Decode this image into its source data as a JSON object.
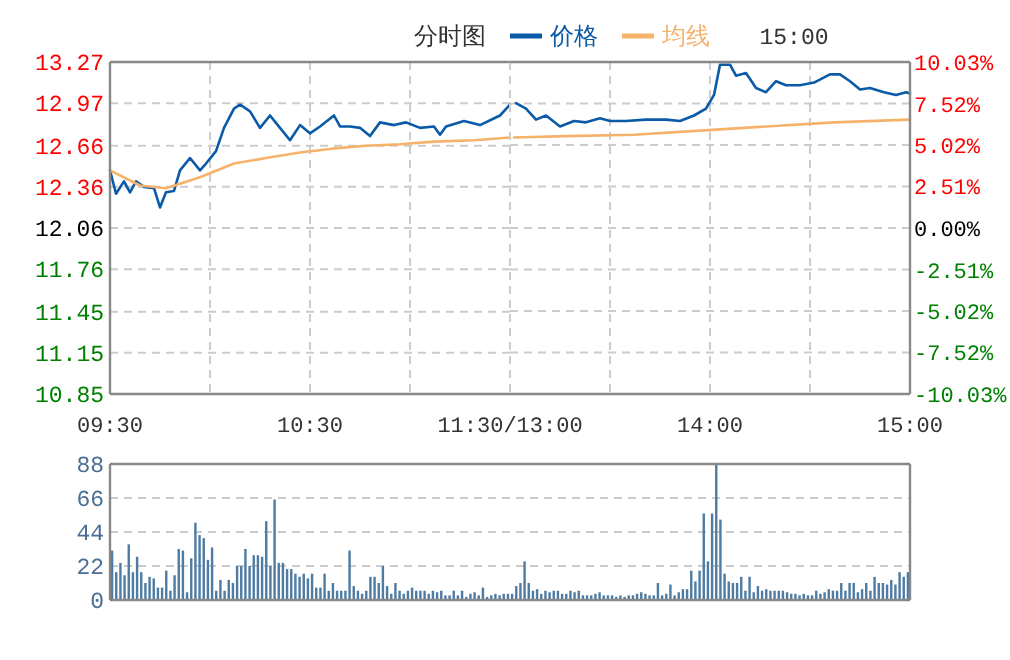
{
  "chart_data": [
    {
      "type": "line",
      "title": "分时图",
      "legend": "top",
      "grid": true,
      "xlim": [
        9.5,
        11.5
      ],
      "xticks": [
        {
          "value": 9.5,
          "label": "09:30"
        },
        {
          "value": 10,
          "label": null
        },
        {
          "value": 10.5,
          "label": "10:30"
        },
        {
          "value": 11,
          "label": null
        },
        {
          "value": 11.5,
          "label": "11:30/13:00"
        }
      ],
      "ylim": [
        10.85,
        13.27
      ],
      "yticks": [
        10.85,
        11.15,
        11.45,
        11.76,
        12.06,
        12.36,
        12.66,
        12.97,
        13.27
      ],
      "series": [
        {
          "name": "价格",
          "color": "#0a5aa8",
          "x": [
            9.5,
            9.53,
            9.57,
            9.6,
            9.63,
            9.67,
            9.72,
            9.75,
            9.78,
            9.82,
            9.85,
            9.9,
            9.95,
            9.98,
            10.03,
            10.07,
            10.12,
            10.15,
            10.2,
            10.25,
            10.3,
            10.35,
            10.4,
            10.45,
            10.5,
            10.55,
            10.62,
            10.65,
            10.7,
            10.75,
            10.8,
            10.85,
            10.92,
            10.98,
            11.05,
            11.12,
            11.15,
            11.18,
            11.27,
            11.35,
            11.45,
            11.5
          ],
          "values": [
            12.48,
            12.31,
            12.4,
            12.32,
            12.4,
            12.36,
            12.35,
            12.21,
            12.32,
            12.33,
            12.48,
            12.57,
            12.48,
            12.53,
            12.62,
            12.79,
            12.93,
            12.96,
            12.91,
            12.79,
            12.88,
            12.79,
            12.7,
            12.81,
            12.75,
            12.8,
            12.88,
            12.8,
            12.8,
            12.79,
            12.73,
            12.83,
            12.81,
            12.83,
            12.79,
            12.8,
            12.74,
            12.8,
            12.84,
            12.81,
            12.88,
            12.96
          ]
        },
        {
          "name": "均线",
          "color": "#f5b26b",
          "x": [
            9.5,
            9.65,
            9.78,
            9.95,
            10.12,
            10.28,
            10.45,
            10.62,
            10.78,
            10.95,
            11.12,
            11.32,
            11.5
          ],
          "values": [
            12.48,
            12.37,
            12.35,
            12.43,
            12.53,
            12.57,
            12.61,
            12.64,
            12.66,
            12.67,
            12.69,
            12.7,
            12.72
          ]
        }
      ]
    },
    {
      "type": "line",
      "grid": true,
      "annotations": [
        "15:00"
      ],
      "xlim": [
        13,
        15
      ],
      "xticks": [
        {
          "value": 13,
          "label": null
        },
        {
          "value": 13.5,
          "label": null
        },
        {
          "value": 14,
          "label": "14:00"
        },
        {
          "value": 14.5,
          "label": null
        },
        {
          "value": 15,
          "label": "15:00"
        }
      ],
      "ylim": [
        10.85,
        13.27
      ],
      "y2lim": [
        -10.03,
        10.03
      ],
      "y2ticks": [
        {
          "value": -10.03,
          "label": "-10.03%"
        },
        {
          "value": -7.52,
          "label": "-7.52%"
        },
        {
          "value": -5.02,
          "label": "-5.02%"
        },
        {
          "value": -2.51,
          "label": "-2.51%"
        },
        {
          "value": 0,
          "label": "0.00%"
        },
        {
          "value": 2.51,
          "label": "2.51%"
        },
        {
          "value": 5.02,
          "label": "5.02%"
        },
        {
          "value": 7.52,
          "label": "7.52%"
        },
        {
          "value": 10.03,
          "label": "10.03%"
        }
      ],
      "series": [
        {
          "color": "#0a5aa8",
          "x": [
            13.03,
            13.08,
            13.13,
            13.18,
            13.25,
            13.32,
            13.38,
            13.45,
            13.5,
            13.58,
            13.68,
            13.78,
            13.85,
            13.92,
            13.98,
            14.02,
            14.05,
            14.1,
            14.13,
            14.18,
            14.23,
            14.28,
            14.33,
            14.38,
            14.45,
            14.52,
            14.6,
            14.65,
            14.7,
            14.75,
            14.8,
            14.87,
            14.93,
            14.98,
            15
          ],
          "values": [
            12.97,
            12.93,
            12.85,
            12.88,
            12.8,
            12.84,
            12.83,
            12.86,
            12.84,
            12.84,
            12.85,
            12.85,
            12.84,
            12.88,
            12.93,
            13.03,
            13.25,
            13.25,
            13.17,
            13.19,
            13.08,
            13.05,
            13.13,
            13.1,
            13.1,
            13.12,
            13.18,
            13.18,
            13.13,
            13.07,
            13.08,
            13.05,
            13.03,
            13.05,
            13.04
          ]
        },
        {
          "color": "#f5b26b",
          "x": [
            13.02,
            13.28,
            13.62,
            13.95,
            14.28,
            14.62,
            15
          ],
          "values": [
            12.72,
            12.73,
            12.74,
            12.77,
            12.8,
            12.83,
            12.85
          ]
        }
      ]
    },
    {
      "type": "bar",
      "color": "#4e7ba3",
      "grid": "y",
      "categories": [
        null,
        null,
        null,
        null,
        null,
        null,
        null,
        null,
        null,
        null,
        null,
        null,
        null,
        null,
        null,
        null,
        null,
        null,
        null,
        null,
        null,
        null,
        null,
        null,
        null,
        null,
        null,
        null,
        null,
        null,
        null,
        null,
        null,
        null,
        null,
        null,
        null,
        null,
        null,
        null,
        null,
        null,
        null,
        null,
        null,
        null,
        null,
        null,
        null,
        null,
        null,
        null,
        null,
        null,
        null,
        null,
        null,
        null,
        null,
        null,
        null,
        null,
        null,
        null,
        null,
        null,
        null,
        null,
        null,
        null,
        null,
        null,
        null,
        null,
        null,
        null,
        null,
        null,
        null,
        null,
        null,
        null,
        null,
        null,
        null,
        null,
        null,
        null,
        null,
        null,
        null,
        null,
        null,
        null,
        null,
        null,
        null,
        null,
        null,
        null,
        null,
        null,
        null,
        null,
        null,
        null,
        null,
        null,
        null,
        null,
        null,
        null,
        null,
        null,
        null,
        null,
        null,
        null,
        null,
        null,
        null,
        null,
        null,
        null,
        null,
        null,
        null,
        null,
        null,
        null,
        null,
        null,
        null,
        null,
        null,
        null,
        null,
        null,
        null,
        null,
        null,
        null,
        null,
        null,
        null,
        null,
        null,
        null,
        null,
        null,
        null,
        null,
        null,
        null,
        null,
        null,
        null,
        null,
        null,
        null,
        null,
        null,
        null,
        null,
        null,
        null,
        null,
        null,
        null,
        null,
        null,
        null,
        null,
        null,
        null,
        null,
        null,
        null,
        null,
        null,
        null,
        null,
        null,
        null,
        null,
        null,
        null,
        null,
        null,
        null,
        null,
        null
      ],
      "ylim": [
        0,
        88
      ],
      "yticks": [
        0,
        22,
        44,
        66,
        88
      ],
      "values": [
        32,
        18,
        24,
        16,
        36,
        18,
        28,
        18,
        11,
        15,
        14,
        8,
        8,
        19,
        6,
        16,
        33,
        32,
        5,
        27,
        50,
        42,
        40,
        26,
        34,
        6,
        13,
        6,
        13,
        11,
        22,
        22,
        33,
        22,
        29,
        29,
        28,
        51,
        22,
        65,
        24,
        24,
        20,
        20,
        17,
        15,
        17,
        14,
        17,
        8,
        8,
        17,
        6,
        11,
        6,
        6,
        6,
        32,
        9,
        6,
        4,
        6,
        15,
        15,
        11,
        22,
        9,
        4,
        11,
        6,
        4,
        6,
        8,
        6,
        6,
        6,
        4,
        6,
        5,
        6,
        3,
        3,
        6,
        3,
        6,
        2,
        4,
        5,
        3,
        8,
        2,
        3,
        4,
        3,
        4,
        4,
        4,
        9,
        11,
        25,
        11,
        6,
        7,
        4,
        6,
        5,
        6,
        6,
        4,
        4,
        6,
        5,
        6,
        3,
        3,
        3,
        4,
        5,
        3,
        3,
        3,
        2,
        3,
        2,
        3,
        3,
        4,
        5,
        4,
        3,
        3,
        11,
        3,
        4,
        10,
        3,
        5,
        7,
        7,
        19,
        12,
        19,
        56,
        25,
        56,
        88,
        52,
        17,
        12,
        11,
        11,
        15,
        6,
        15,
        5,
        9,
        6,
        7,
        6,
        6,
        6,
        6,
        5,
        4,
        4,
        3,
        4,
        3,
        3,
        6,
        4,
        5,
        7,
        6,
        6,
        11,
        6,
        11,
        11,
        5,
        7,
        11,
        6,
        15,
        11,
        11,
        10,
        13,
        10,
        18,
        15,
        18
      ]
    }
  ]
}
